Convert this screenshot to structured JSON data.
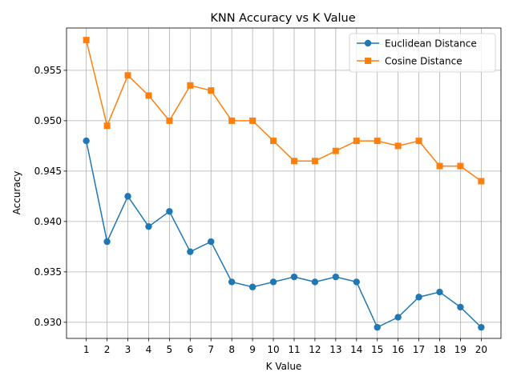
{
  "chart_data": {
    "type": "line",
    "title": "KNN Accuracy vs K Value",
    "xlabel": "K Value",
    "ylabel": "Accuracy",
    "x": [
      1,
      2,
      3,
      4,
      5,
      6,
      7,
      8,
      9,
      10,
      11,
      12,
      13,
      14,
      15,
      16,
      17,
      18,
      19,
      20
    ],
    "xticks": [
      "1",
      "2",
      "3",
      "4",
      "5",
      "6",
      "7",
      "8",
      "9",
      "10",
      "11",
      "12",
      "13",
      "14",
      "15",
      "16",
      "17",
      "18",
      "19",
      "20"
    ],
    "yticks": [
      0.93,
      0.935,
      0.94,
      0.945,
      0.95,
      0.955
    ],
    "ytick_labels": [
      "0.930",
      "0.935",
      "0.940",
      "0.945",
      "0.950",
      "0.955"
    ],
    "ylim": [
      0.9284,
      0.9592
    ],
    "xlim": [
      0.05,
      20.95
    ],
    "grid": true,
    "legend_position": "top-right",
    "series": [
      {
        "name": "Euclidean Distance",
        "color": "#1f77b4",
        "marker": "circle",
        "values": [
          0.948,
          0.938,
          0.9425,
          0.9395,
          0.941,
          0.937,
          0.938,
          0.934,
          0.9335,
          0.934,
          0.9345,
          0.934,
          0.9345,
          0.934,
          0.9295,
          0.9305,
          0.9325,
          0.933,
          0.9315,
          0.9295
        ]
      },
      {
        "name": "Cosine Distance",
        "color": "#ff7f0e",
        "marker": "square",
        "values": [
          0.958,
          0.9495,
          0.9545,
          0.9525,
          0.95,
          0.9535,
          0.953,
          0.95,
          0.95,
          0.948,
          0.946,
          0.946,
          0.947,
          0.948,
          0.948,
          0.9475,
          0.948,
          0.9455,
          0.9455,
          0.944
        ]
      }
    ]
  }
}
